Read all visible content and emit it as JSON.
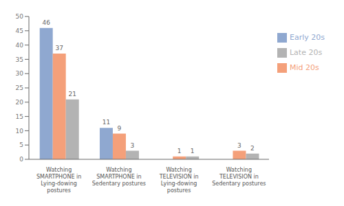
{
  "chart_data": {
    "type": "bar",
    "categories": [
      "Watching\nSMARTPHONE in\nLying-dowing\npostures",
      "Watching\nSMARTPHONE in\nSedentary postures",
      "Watching\nTELEVISION in\nLying-dowing\npostures",
      "Watching\nTELEVISION in\nSedentary postures"
    ],
    "series": [
      {
        "name": "Early 20s",
        "color": "#8fa8d0",
        "values": [
          46,
          11,
          0,
          0
        ]
      },
      {
        "name": "Mid 20s",
        "color": "#f4a07a",
        "values": [
          37,
          9,
          1,
          3
        ]
      },
      {
        "name": "Late 20s",
        "color": "#b3b3b3",
        "values": [
          21,
          3,
          1,
          2
        ]
      }
    ],
    "ylim": [
      0,
      50
    ],
    "yticks": [
      0,
      5,
      10,
      15,
      20,
      25,
      30,
      35,
      40,
      45,
      50
    ],
    "grid": false,
    "legend": "right",
    "data_labels": true
  }
}
